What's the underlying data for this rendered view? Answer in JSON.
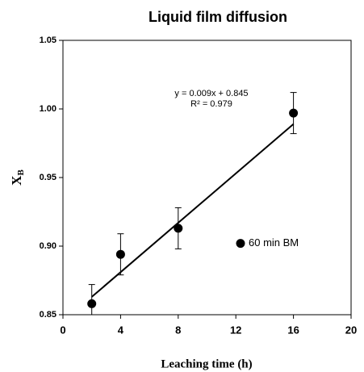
{
  "chart_data": {
    "type": "scatter",
    "title": "Liquid film diffusion",
    "x_label": "Leaching time (h)",
    "y_label": "X",
    "y_label_subscript": "B",
    "series": [
      {
        "name": "60 min BM",
        "color": "#000000",
        "x": [
          2,
          4,
          8,
          16
        ],
        "values": [
          0.858,
          0.894,
          0.913,
          0.997
        ],
        "error": [
          0.014,
          0.015,
          0.015,
          0.015
        ]
      }
    ],
    "trendline": {
      "slope": 0.009,
      "intercept": 0.845,
      "equation": "y = 0.009x + 0.845",
      "r2": "R² = 0.979"
    },
    "xlim": [
      0,
      20
    ],
    "xticks": [
      0,
      4,
      8,
      12,
      16,
      20
    ],
    "ylim": [
      0.85,
      1.05
    ],
    "yticks": [
      {
        "value": 0.85,
        "label": "0.85"
      },
      {
        "value": 0.9,
        "label": "0.90"
      },
      {
        "value": 0.95,
        "label": "0.95"
      },
      {
        "value": 1.0,
        "label": "1.00"
      },
      {
        "value": 1.05,
        "label": "1.05"
      }
    ],
    "legend": "right"
  }
}
